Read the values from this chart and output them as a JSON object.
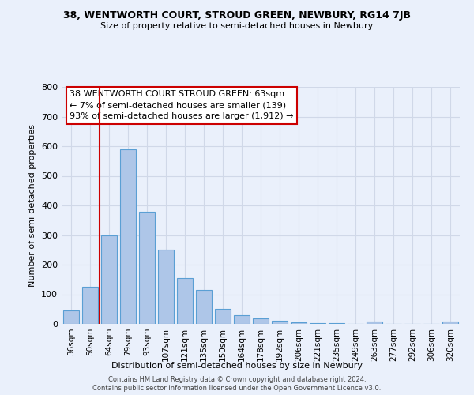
{
  "title": "38, WENTWORTH COURT, STROUD GREEN, NEWBURY, RG14 7JB",
  "subtitle": "Size of property relative to semi-detached houses in Newbury",
  "xlabel": "Distribution of semi-detached houses by size in Newbury",
  "ylabel": "Number of semi-detached properties",
  "categories": [
    "36sqm",
    "50sqm",
    "64sqm",
    "79sqm",
    "93sqm",
    "107sqm",
    "121sqm",
    "135sqm",
    "150sqm",
    "164sqm",
    "178sqm",
    "192sqm",
    "206sqm",
    "221sqm",
    "235sqm",
    "249sqm",
    "263sqm",
    "277sqm",
    "292sqm",
    "306sqm",
    "320sqm"
  ],
  "values": [
    45,
    125,
    300,
    590,
    380,
    250,
    155,
    115,
    50,
    30,
    20,
    10,
    5,
    3,
    2,
    1,
    8,
    1,
    1,
    1,
    8
  ],
  "bar_color": "#aec6e8",
  "bar_edge_color": "#5a9fd4",
  "grid_color": "#d0d8e8",
  "background_color": "#eaf0fb",
  "vline_x_index": 2,
  "vline_color": "#cc0000",
  "annotation_lines": [
    "38 WENTWORTH COURT STROUD GREEN: 63sqm",
    "← 7% of semi-detached houses are smaller (139)",
    "93% of semi-detached houses are larger (1,912) →"
  ],
  "annotation_box_color": "#ffffff",
  "annotation_box_edge": "#cc0000",
  "ylim": [
    0,
    800
  ],
  "yticks": [
    0,
    100,
    200,
    300,
    400,
    500,
    600,
    700,
    800
  ],
  "footer1": "Contains HM Land Registry data © Crown copyright and database right 2024.",
  "footer2": "Contains public sector information licensed under the Open Government Licence v3.0."
}
